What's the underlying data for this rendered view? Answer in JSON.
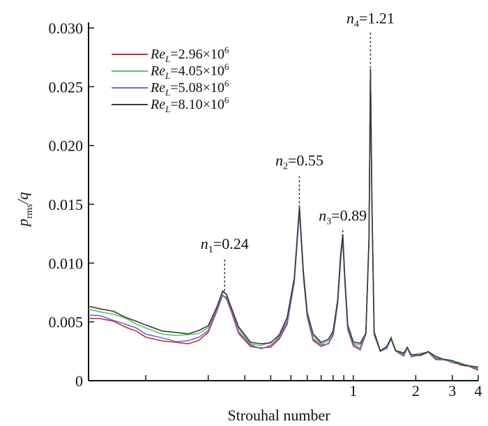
{
  "chart_data": {
    "type": "line",
    "title": "",
    "xlabel": "Strouhal number",
    "ylabel_main": "p",
    "ylabel_sub": "rms",
    "ylabel_tail": "/q",
    "xscale": "log",
    "xlim": [
      0.053,
      4
    ],
    "ylim": [
      0,
      0.03
    ],
    "yticks": [
      0,
      0.005,
      0.01,
      0.015,
      0.02,
      0.025,
      0.03
    ],
    "ytick_labels": [
      "0",
      "0.005",
      "0.010",
      "0.015",
      "0.020",
      "0.025",
      "0.030"
    ],
    "xticks": [
      0.1,
      0.2,
      0.3,
      0.4,
      0.5,
      0.6,
      0.7,
      0.8,
      0.9,
      1,
      2,
      3,
      4
    ],
    "xtick_labels": [
      {
        "value": 1,
        "text": "1"
      },
      {
        "value": 2,
        "text": "2"
      },
      {
        "value": 3,
        "text": "3"
      },
      {
        "value": 4,
        "text": "4"
      }
    ],
    "series": [
      {
        "name": "Re_L=2.96×10^6",
        "legend_main": "Re",
        "legend_sub": "L",
        "legend_value": "=2.96×10",
        "legend_exp": "6",
        "color": "#c0303a",
        "offset": -0.0001
      },
      {
        "name": "Re_L=4.05×10^6",
        "legend_main": "Re",
        "legend_sub": "L",
        "legend_value": "=4.05×10",
        "legend_exp": "6",
        "color": "#5ec85a",
        "offset": 0.0002
      },
      {
        "name": "Re_L=5.08×10^6",
        "legend_main": "Re",
        "legend_sub": "L",
        "legend_value": "=5.08×10",
        "legend_exp": "6",
        "color": "#6c6ad6",
        "offset": 0.0
      },
      {
        "name": "Re_L=8.10×10^6",
        "legend_main": "Re",
        "legend_sub": "L",
        "legend_value": "=8.10×10",
        "legend_exp": "6",
        "color": "#3a3a3a",
        "offset": 0.0003
      }
    ],
    "base_curve": [
      [
        0.053,
        0.0056
      ],
      [
        0.06,
        0.0055
      ],
      [
        0.07,
        0.0052
      ],
      [
        0.08,
        0.0048
      ],
      [
        0.09,
        0.0044
      ],
      [
        0.1,
        0.004
      ],
      [
        0.12,
        0.0036
      ],
      [
        0.14,
        0.0034
      ],
      [
        0.16,
        0.0034
      ],
      [
        0.18,
        0.0036
      ],
      [
        0.2,
        0.0043
      ],
      [
        0.22,
        0.006
      ],
      [
        0.235,
        0.0073
      ],
      [
        0.245,
        0.0071
      ],
      [
        0.26,
        0.0058
      ],
      [
        0.28,
        0.0042
      ],
      [
        0.32,
        0.003
      ],
      [
        0.36,
        0.0028
      ],
      [
        0.4,
        0.003
      ],
      [
        0.44,
        0.0036
      ],
      [
        0.48,
        0.005
      ],
      [
        0.52,
        0.0085
      ],
      [
        0.55,
        0.0145
      ],
      [
        0.575,
        0.009
      ],
      [
        0.6,
        0.0055
      ],
      [
        0.64,
        0.0036
      ],
      [
        0.7,
        0.003
      ],
      [
        0.76,
        0.0032
      ],
      [
        0.8,
        0.004
      ],
      [
        0.84,
        0.0065
      ],
      [
        0.87,
        0.0105
      ],
      [
        0.89,
        0.0122
      ],
      [
        0.91,
        0.0085
      ],
      [
        0.94,
        0.0045
      ],
      [
        1.0,
        0.003
      ],
      [
        1.08,
        0.0028
      ],
      [
        1.15,
        0.004
      ],
      [
        1.19,
        0.012
      ],
      [
        1.21,
        0.0265
      ],
      [
        1.23,
        0.015
      ],
      [
        1.26,
        0.004
      ],
      [
        1.35,
        0.0025
      ],
      [
        1.45,
        0.0028
      ],
      [
        1.52,
        0.0036
      ],
      [
        1.6,
        0.0025
      ],
      [
        1.75,
        0.0022
      ],
      [
        1.82,
        0.0028
      ],
      [
        1.9,
        0.0021
      ],
      [
        2.1,
        0.0022
      ],
      [
        2.3,
        0.0024
      ],
      [
        2.5,
        0.0019
      ],
      [
        2.7,
        0.0018
      ],
      [
        3.0,
        0.0016
      ],
      [
        3.3,
        0.0014
      ],
      [
        3.6,
        0.0012
      ],
      [
        4.0,
        0.001
      ]
    ],
    "annotations": [
      {
        "label_main": "n",
        "label_sub": "1",
        "label_value": "=0.24",
        "x": 0.24,
        "line_top": 0.0103,
        "line_bottom": 0.0075,
        "text_y": 0.0112
      },
      {
        "label_main": "n",
        "label_sub": "2",
        "label_value": "=0.55",
        "x": 0.55,
        "line_top": 0.0174,
        "line_bottom": 0.0146,
        "text_y": 0.0183
      },
      {
        "label_main": "n",
        "label_sub": "3",
        "label_value": "=0.89",
        "x": 0.89,
        "line_top": 0.0128,
        "line_bottom": 0.0123,
        "text_y": 0.0136
      },
      {
        "label_main": "n",
        "label_sub": "4",
        "label_value": "=1.21",
        "x": 1.21,
        "line_top": 0.0296,
        "line_bottom": 0.0266,
        "text_y": 0.0304
      }
    ]
  }
}
